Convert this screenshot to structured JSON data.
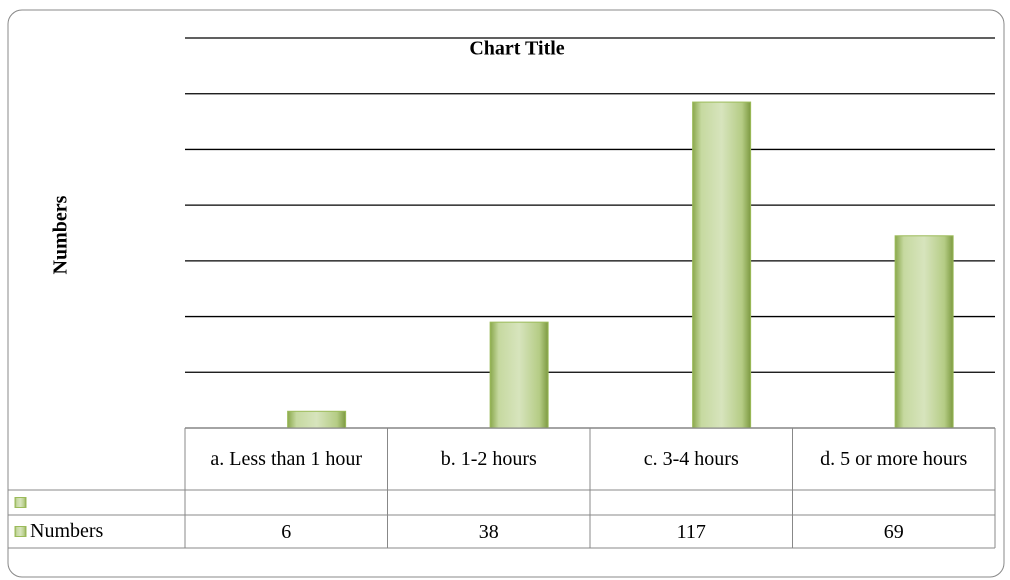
{
  "chart_data": {
    "type": "bar",
    "title": "Chart Title",
    "y_label": "Numbers",
    "categories": [
      "a. Less than 1 hour",
      "b. 1-2 hours",
      "c. 3-4 hours",
      "d. 5 or more hours"
    ],
    "series": [
      {
        "name": "Numbers",
        "color": "#9bbb59",
        "values": [
          6,
          38,
          117,
          69
        ]
      }
    ],
    "ylim": [
      0,
      140
    ],
    "yticks": [
      0,
      20,
      40,
      60,
      80,
      100,
      120,
      140
    ],
    "grid": true,
    "data_table": true
  }
}
